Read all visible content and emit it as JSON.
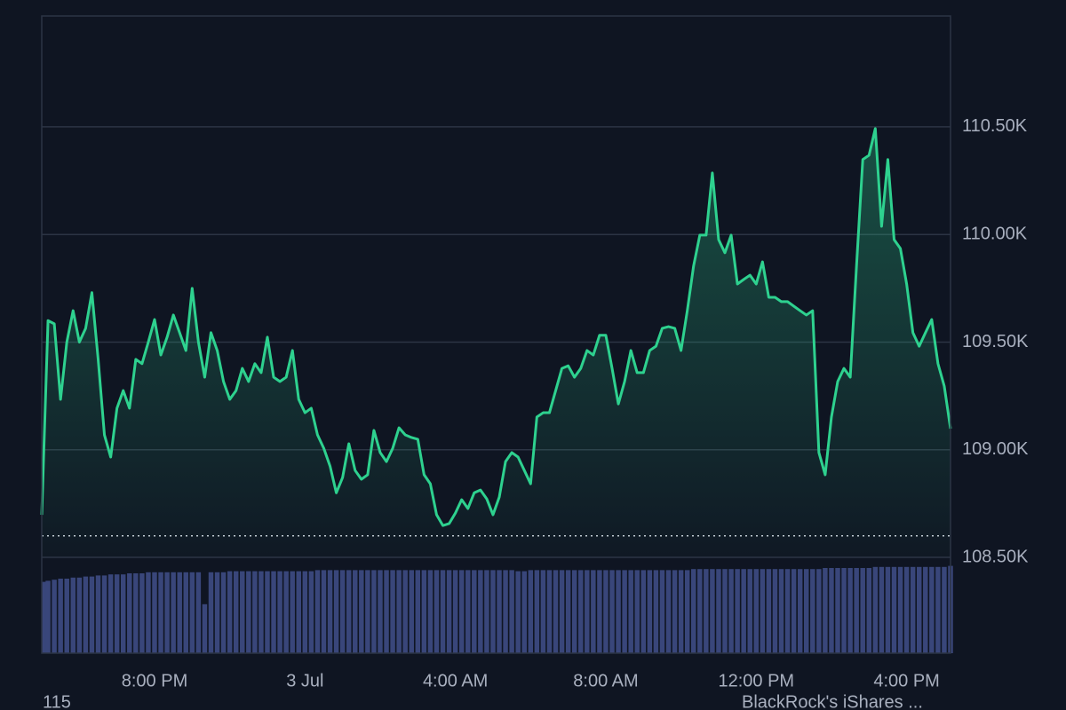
{
  "chart_data": {
    "type": "line",
    "categories": [
      null,
      null,
      null,
      null,
      null,
      null,
      null,
      null,
      null,
      null,
      null,
      null,
      null,
      null,
      null,
      null,
      null,
      null,
      "8:00 PM",
      null,
      null,
      null,
      null,
      null,
      null,
      null,
      null,
      null,
      null,
      null,
      null,
      null,
      null,
      null,
      null,
      null,
      null,
      null,
      null,
      null,
      null,
      null,
      "3 Jul",
      null,
      null,
      null,
      null,
      null,
      null,
      null,
      null,
      null,
      null,
      null,
      null,
      null,
      null,
      null,
      null,
      null,
      null,
      null,
      null,
      null,
      null,
      null,
      "4:00 AM",
      null,
      null,
      null,
      null,
      null,
      null,
      null,
      null,
      null,
      null,
      null,
      null,
      null,
      null,
      null,
      null,
      null,
      null,
      null,
      null,
      null,
      null,
      null,
      "8:00 AM",
      null,
      null,
      null,
      null,
      null,
      null,
      null,
      null,
      null,
      null,
      null,
      null,
      null,
      null,
      null,
      null,
      null,
      null,
      null,
      null,
      null,
      null,
      null,
      "12:00 PM",
      null,
      null,
      null,
      null,
      null,
      null,
      null,
      null,
      null,
      null,
      null,
      null,
      null,
      null,
      null,
      null,
      null,
      null,
      null,
      null,
      null,
      null,
      null,
      "4:00 PM",
      null,
      null,
      null,
      null,
      null,
      null,
      null
    ],
    "series": [
      {
        "color": "#2ed18f",
        "values": [
          108698,
          109600,
          109585,
          109234,
          109500,
          109646,
          109500,
          109564,
          109730,
          109420,
          109069,
          108966,
          109193,
          109275,
          109193,
          109420,
          109400,
          109500,
          109605,
          109440,
          109523,
          109626,
          109544,
          109461,
          109750,
          109500,
          109337,
          109544,
          109461,
          109317,
          109234,
          109275,
          109378,
          109317,
          109400,
          109358,
          109523,
          109337,
          109317,
          109337,
          109461,
          109234,
          109172,
          109193,
          109069,
          109007,
          108924,
          108800,
          108871,
          109028,
          108904,
          108863,
          108884,
          109090,
          108987,
          108945,
          109007,
          109102,
          109069,
          109057,
          109049,
          108884,
          108842,
          108698,
          108648,
          108657,
          108706,
          108768,
          108727,
          108800,
          108813,
          108772,
          108698,
          108780,
          108945,
          108987,
          108966,
          108904,
          108842,
          109152,
          109172,
          109172,
          109275,
          109378,
          109390,
          109337,
          109378,
          109461,
          109440,
          109532,
          109532,
          109378,
          109213,
          109317,
          109461,
          109358,
          109358,
          109461,
          109481,
          109564,
          109572,
          109564,
          109461,
          109646,
          109853,
          109997,
          109997,
          110286,
          109976,
          109915,
          109997,
          109770,
          109791,
          109811,
          109770,
          109873,
          109708,
          109708,
          109688,
          109688,
          109667,
          109646,
          109626,
          109646,
          108987,
          108884,
          109152,
          109317,
          109378,
          109337,
          109853,
          110348,
          110368,
          110492,
          110038,
          110348,
          109976,
          109935,
          109770,
          109544,
          109481,
          109544,
          109605,
          109400,
          109296,
          109098
        ]
      }
    ],
    "volume": {
      "color": "#39467a",
      "values": [
        67,
        68,
        69,
        70,
        70,
        71,
        71,
        72,
        72,
        73,
        73,
        74,
        74,
        74,
        75,
        75,
        75,
        76,
        76,
        76,
        76,
        76,
        76,
        76,
        76,
        76,
        46,
        76,
        76,
        76,
        77,
        77,
        77,
        77,
        77,
        77,
        77,
        77,
        77,
        77,
        77,
        77,
        77,
        77,
        78,
        78,
        78,
        78,
        78,
        78,
        78,
        78,
        78,
        78,
        78,
        78,
        78,
        78,
        78,
        78,
        78,
        78,
        78,
        78,
        78,
        78,
        78,
        78,
        78,
        78,
        78,
        78,
        78,
        78,
        78,
        78,
        77,
        77,
        78,
        78,
        78,
        78,
        78,
        78,
        78,
        78,
        78,
        78,
        78,
        78,
        78,
        78,
        78,
        78,
        78,
        78,
        78,
        78,
        78,
        78,
        78,
        78,
        78,
        78,
        79,
        79,
        79,
        79,
        79,
        79,
        79,
        79,
        79,
        79,
        79,
        79,
        79,
        79,
        79,
        79,
        79,
        79,
        79,
        79,
        79,
        80,
        80,
        80,
        80,
        80,
        80,
        80,
        80,
        81,
        81,
        81,
        81,
        81,
        81,
        81,
        81,
        81,
        81,
        81,
        81,
        82
      ],
      "ylim": [
        0,
        100
      ]
    },
    "reference_line": 108600,
    "ylim": [
      108055,
      111015
    ],
    "yticks": [
      {
        "value": 108500,
        "label": "108.50K"
      },
      {
        "value": 109000,
        "label": "109.00K"
      },
      {
        "value": 109500,
        "label": "109.50K"
      },
      {
        "value": 110000,
        "label": "110.00K"
      },
      {
        "value": 110500,
        "label": "110.50K"
      }
    ],
    "grid": true,
    "footer_left": "115",
    "footer_right": "BlackRock's iShares ..."
  }
}
